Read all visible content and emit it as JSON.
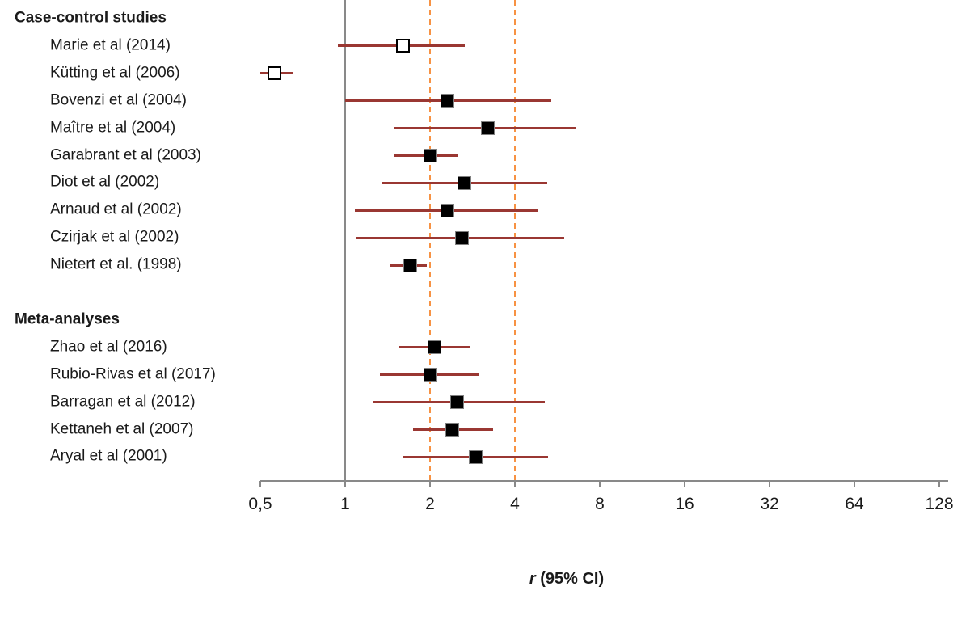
{
  "chart_data": {
    "type": "scatter",
    "subtype": "forest-plot",
    "x_scale": "log2",
    "x_axis_range": [
      0.5,
      128
    ],
    "x_ticks": [
      0.5,
      1,
      2,
      4,
      8,
      16,
      32,
      64,
      128
    ],
    "x_tick_labels": [
      "0,5",
      "1",
      "2",
      "4",
      "8",
      "16",
      "32",
      "64",
      "128"
    ],
    "xlabel_italic": "r",
    "xlabel_rest": " (95% CI)",
    "reference_line_solid": 1,
    "reference_lines_dashed": [
      2,
      4
    ],
    "legend": "none",
    "grid": "off",
    "groups": [
      {
        "heading": "Case-control studies",
        "studies": [
          {
            "label": "Marie et al (2014)",
            "estimate": 1.6,
            "ci_low": 0.94,
            "ci_high": 2.65,
            "marker": "open"
          },
          {
            "label": "Kütting et al (2006)",
            "estimate": 0.56,
            "ci_low": 0.5,
            "ci_high": 0.65,
            "marker": "open"
          },
          {
            "label": "Bovenzi et al (2004)",
            "estimate": 2.3,
            "ci_low": 1.0,
            "ci_high": 5.4,
            "marker": "filled"
          },
          {
            "label": "Maître et al (2004)",
            "estimate": 3.2,
            "ci_low": 1.5,
            "ci_high": 6.6,
            "marker": "filled"
          },
          {
            "label": "Garabrant et al (2003)",
            "estimate": 2.0,
            "ci_low": 1.5,
            "ci_high": 2.5,
            "marker": "filled"
          },
          {
            "label": "Diot et al (2002)",
            "estimate": 2.65,
            "ci_low": 1.35,
            "ci_high": 5.2,
            "marker": "filled"
          },
          {
            "label": "Arnaud et al (2002)",
            "estimate": 2.3,
            "ci_low": 1.08,
            "ci_high": 4.8,
            "marker": "filled"
          },
          {
            "label": "Czirjak et al (2002)",
            "estimate": 2.6,
            "ci_low": 1.1,
            "ci_high": 6.0,
            "marker": "filled"
          },
          {
            "label": "Nietert et al. (1998)",
            "estimate": 1.7,
            "ci_low": 1.45,
            "ci_high": 1.95,
            "marker": "filled"
          }
        ]
      },
      {
        "heading": "Meta-analyses",
        "studies": [
          {
            "label": "Zhao et al (2016)",
            "estimate": 2.07,
            "ci_low": 1.56,
            "ci_high": 2.78,
            "marker": "filled"
          },
          {
            "label": "Rubio-Rivas et al (2017)",
            "estimate": 2.0,
            "ci_low": 1.33,
            "ci_high": 3.0,
            "marker": "filled"
          },
          {
            "label": "Barragan et al (2012)",
            "estimate": 2.5,
            "ci_low": 1.25,
            "ci_high": 5.1,
            "marker": "filled"
          },
          {
            "label": "Kettaneh et al (2007)",
            "estimate": 2.4,
            "ci_low": 1.74,
            "ci_high": 3.35,
            "marker": "filled"
          },
          {
            "label": "Aryal et al (2001)",
            "estimate": 2.9,
            "ci_low": 1.6,
            "ci_high": 5.25,
            "marker": "filled"
          }
        ]
      }
    ],
    "colors": {
      "ci_line": "#9a3732",
      "dashed_reference": "#f79243",
      "solid_reference": "#898989",
      "axis": "#898989",
      "marker_filled": "#000000",
      "marker_open_fill": "#ffffff",
      "text": "#1a1a1a"
    }
  }
}
